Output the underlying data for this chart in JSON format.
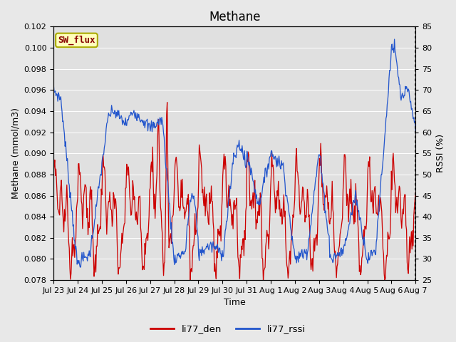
{
  "title": "Methane",
  "xlabel": "Time",
  "ylabel_left": "Methane (mmol/m3)",
  "ylabel_right": "RSSI (%)",
  "ylim_left": [
    0.078,
    0.102
  ],
  "ylim_right": [
    25,
    85
  ],
  "yticks_left": [
    0.078,
    0.08,
    0.082,
    0.084,
    0.086,
    0.088,
    0.09,
    0.092,
    0.094,
    0.096,
    0.098,
    0.1,
    0.102
  ],
  "yticks_right": [
    25,
    30,
    35,
    40,
    45,
    50,
    55,
    60,
    65,
    70,
    75,
    80,
    85
  ],
  "bg_color": "#e8e8e8",
  "plot_bg_color": "#e0e0e0",
  "line_color_red": "#cc0000",
  "line_color_blue": "#2255cc",
  "legend_labels": [
    "li77_den",
    "li77_rssi"
  ],
  "annotation_text": "SW_flux",
  "annotation_box_facecolor": "#ffffbb",
  "annotation_text_color": "#880000",
  "annotation_border_color": "#aaaa00",
  "grid_color": "#ffffff",
  "title_fontsize": 12,
  "axis_label_fontsize": 9,
  "tick_label_fontsize": 8,
  "x_tick_labels": [
    "Jul 23",
    "Jul 24",
    "Jul 25",
    "Jul 26",
    "Jul 27",
    "Jul 28",
    "Jul 29",
    "Jul 30",
    "Jul 31",
    "Aug 1",
    "Aug 2",
    "Aug 3",
    "Aug 4",
    "Aug 5",
    "Aug 6",
    "Aug 7"
  ]
}
